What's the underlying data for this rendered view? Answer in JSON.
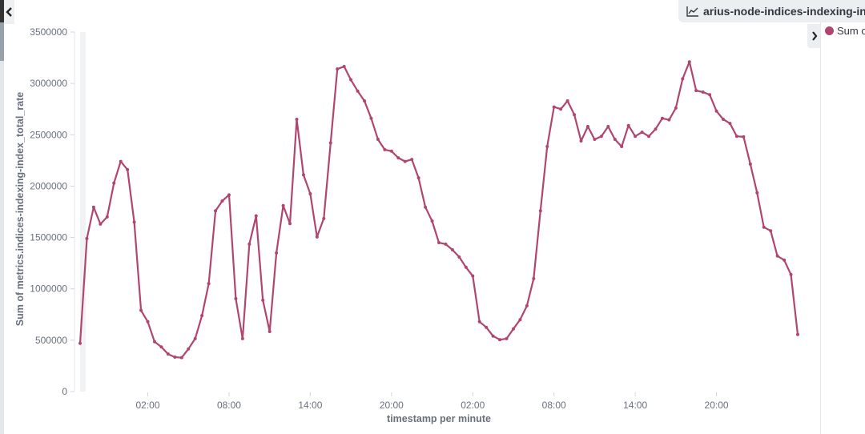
{
  "header": {
    "title": "arius-node-indices-indexing-in",
    "title_icon": "line-chart-icon"
  },
  "legend": {
    "items": [
      {
        "label": "Sum o",
        "color": "#b0466f"
      }
    ]
  },
  "colors": {
    "series": "#b0466f",
    "axis_text": "#69707d"
  },
  "chart_data": {
    "type": "line",
    "title": "",
    "xlabel": "timestamp per minute",
    "ylabel": "Sum of metrics.indices-indexing-index_total_rate",
    "ylim": [
      0,
      3500000
    ],
    "yticks": [
      "0",
      "500000",
      "1000000",
      "1500000",
      "2000000",
      "2500000",
      "3000000",
      "3500000"
    ],
    "xticks": [
      "02:00",
      "08:00",
      "14:00",
      "20:00",
      "02:00",
      "08:00",
      "14:00",
      "20:00"
    ],
    "grid": false,
    "legend_position": "right",
    "x": [
      "21:00",
      "21:30",
      "22:00",
      "22:30",
      "23:00",
      "23:30",
      "00:00",
      "00:30",
      "01:00",
      "01:30",
      "02:00",
      "02:30",
      "03:00",
      "03:30",
      "04:00",
      "04:30",
      "05:00",
      "05:30",
      "06:00",
      "06:30",
      "07:00",
      "07:30",
      "08:00",
      "08:30",
      "09:00",
      "09:30",
      "10:00",
      "10:30",
      "11:00",
      "11:30",
      "12:00",
      "12:30",
      "13:00",
      "13:30",
      "14:00",
      "14:30",
      "15:00",
      "15:30",
      "16:00",
      "16:30",
      "17:00",
      "17:30",
      "18:00",
      "18:30",
      "19:00",
      "19:30",
      "20:00",
      "20:30",
      "21:00",
      "21:30",
      "22:00",
      "22:30",
      "23:00",
      "23:30",
      "00:00",
      "00:30",
      "01:00",
      "01:30",
      "02:00",
      "02:30",
      "03:00",
      "03:30",
      "04:00",
      "04:30",
      "05:00",
      "05:30",
      "06:00",
      "06:30",
      "07:00",
      "07:30",
      "08:00",
      "08:30",
      "09:00",
      "09:30",
      "10:00",
      "10:30",
      "11:00",
      "11:30",
      "12:00",
      "12:30",
      "13:00",
      "13:30",
      "14:00",
      "14:30",
      "15:00",
      "15:30",
      "16:00",
      "16:30",
      "17:00",
      "17:30",
      "18:00",
      "18:30",
      "19:00",
      "19:30",
      "20:00",
      "20:30",
      "21:00",
      "21:30",
      "22:00",
      "22:30",
      "23:00",
      "23:30",
      "00:00",
      "00:30",
      "01:00",
      "01:30",
      "02:00"
    ],
    "series": [
      {
        "values": [
          470000,
          1490000,
          1795000,
          1630000,
          1700000,
          2030000,
          2240000,
          2160000,
          1650000,
          790000,
          680000,
          485000,
          435000,
          365000,
          335000,
          330000,
          415000,
          515000,
          740000,
          1050000,
          1760000,
          1855000,
          1915000,
          905000,
          515000,
          1435000,
          1710000,
          890000,
          585000,
          1350000,
          1810000,
          1635000,
          2650000,
          2110000,
          1925000,
          1505000,
          1685000,
          2420000,
          3140000,
          3165000,
          3035000,
          2925000,
          2830000,
          2660000,
          2455000,
          2355000,
          2340000,
          2275000,
          2240000,
          2260000,
          2080000,
          1795000,
          1660000,
          1450000,
          1435000,
          1380000,
          1310000,
          1210000,
          1125000,
          680000,
          625000,
          540000,
          505000,
          515000,
          610000,
          700000,
          835000,
          1100000,
          1760000,
          2385000,
          2770000,
          2750000,
          2830000,
          2695000,
          2440000,
          2580000,
          2455000,
          2485000,
          2580000,
          2455000,
          2385000,
          2590000,
          2485000,
          2525000,
          2485000,
          2555000,
          2660000,
          2645000,
          2760000,
          3045000,
          3210000,
          2930000,
          2915000,
          2890000,
          2730000,
          2650000,
          2610000,
          2485000,
          2480000,
          2215000,
          1935000,
          1600000,
          1565000,
          1320000,
          1280000,
          1140000,
          555000
        ]
      }
    ]
  }
}
